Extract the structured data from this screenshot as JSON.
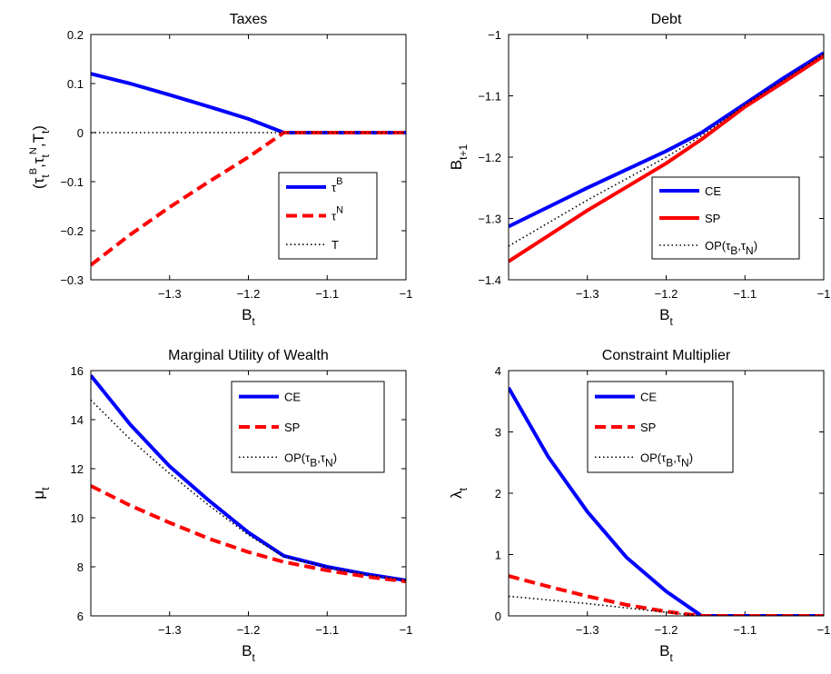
{
  "chart_data": [
    {
      "type": "line",
      "title": "Taxes",
      "xlabel": {
        "main": "B",
        "sub": "t"
      },
      "ylabel": {
        "parts": [
          {
            "t": "(",
            "s": "n"
          },
          {
            "t": "τ",
            "s": "n"
          },
          {
            "t": "t",
            "s": "sub"
          },
          {
            "t": "B",
            "s": "sup"
          },
          {
            "t": ",",
            "s": "n"
          },
          {
            "t": "τ",
            "s": "n"
          },
          {
            "t": "t",
            "s": "sub"
          },
          {
            "t": "N",
            "s": "sup"
          },
          {
            "t": ",T",
            "s": "n"
          },
          {
            "t": "t",
            "s": "sub"
          },
          {
            "t": ")",
            "s": "n"
          }
        ]
      },
      "xlim": [
        -1.4,
        -1.0
      ],
      "ylim": [
        -0.3,
        0.2
      ],
      "xticks": [
        -1.3,
        -1.2,
        -1.1,
        -1
      ],
      "xtick_labels": [
        "−1.3",
        "−1.2",
        "−1.1",
        "−1"
      ],
      "yticks": [
        -0.3,
        -0.2,
        -0.1,
        0,
        0.1,
        0.2
      ],
      "ytick_labels": [
        "−0.3",
        "−0.2",
        "−0.1",
        "0",
        "0.1",
        "0.2"
      ],
      "legend_position": "lower-right",
      "series": [
        {
          "name": "τ^B",
          "legend": {
            "main": "τ",
            "sup": "B"
          },
          "color": "#0000ff",
          "style": "solid",
          "x": [
            -1.4,
            -1.35,
            -1.3,
            -1.25,
            -1.2,
            -1.155,
            -1.1,
            -1.05,
            -1.0
          ],
          "y": [
            0.12,
            0.1,
            0.077,
            0.053,
            0.028,
            0.0,
            0.0,
            0.0,
            0.0
          ]
        },
        {
          "name": "τ^N",
          "legend": {
            "main": "τ",
            "sup": "N"
          },
          "color": "#ff0000",
          "style": "dashed",
          "x": [
            -1.4,
            -1.35,
            -1.3,
            -1.25,
            -1.2,
            -1.155,
            -1.1,
            -1.05,
            -1.0
          ],
          "y": [
            -0.27,
            -0.208,
            -0.152,
            -0.1,
            -0.05,
            0.0,
            0.0,
            0.0,
            0.0
          ]
        },
        {
          "name": "T",
          "legend": {
            "main": "T",
            "sup": ""
          },
          "color": "#000000",
          "style": "dotted",
          "x": [
            -1.4,
            -1.0
          ],
          "y": [
            0.0,
            0.0
          ]
        }
      ]
    },
    {
      "type": "line",
      "title": "Debt",
      "xlabel": {
        "main": "B",
        "sub": "t"
      },
      "ylabel": {
        "parts": [
          {
            "t": "B",
            "s": "n"
          },
          {
            "t": "t+1",
            "s": "sub"
          }
        ]
      },
      "xlim": [
        -1.4,
        -1.0
      ],
      "ylim": [
        -1.4,
        -1.0
      ],
      "xticks": [
        -1.3,
        -1.2,
        -1.1,
        -1
      ],
      "xtick_labels": [
        "−1.3",
        "−1.2",
        "−1.1",
        "−1"
      ],
      "yticks": [
        -1.4,
        -1.3,
        -1.2,
        -1.1,
        -1
      ],
      "ytick_labels": [
        "−1.4",
        "−1.3",
        "−1.2",
        "−1.1",
        "−1"
      ],
      "legend_position": "lower-right",
      "series": [
        {
          "name": "CE",
          "legend": {
            "main": "CE"
          },
          "color": "#0000ff",
          "style": "solid",
          "x": [
            -1.4,
            -1.3,
            -1.2,
            -1.155,
            -1.1,
            -1.05,
            -1.0
          ],
          "y": [
            -1.313,
            -1.25,
            -1.19,
            -1.16,
            -1.113,
            -1.07,
            -1.03
          ]
        },
        {
          "name": "SP",
          "legend": {
            "main": "SP"
          },
          "color": "#ff0000",
          "style": "solid",
          "x": [
            -1.4,
            -1.3,
            -1.2,
            -1.155,
            -1.1,
            -1.05,
            -1.0
          ],
          "y": [
            -1.37,
            -1.287,
            -1.21,
            -1.171,
            -1.118,
            -1.077,
            -1.035
          ]
        },
        {
          "name": "OP(τB,τN)",
          "legend": {
            "main": "OP(τ",
            "sub1": "B",
            "mid": ",τ",
            "sub2": "N",
            "end": ")"
          },
          "color": "#000000",
          "style": "dotted",
          "x": [
            -1.4,
            -1.3,
            -1.2,
            -1.155,
            -1.1,
            -1.05,
            -1.0
          ],
          "y": [
            -1.345,
            -1.27,
            -1.2,
            -1.165,
            -1.115,
            -1.073,
            -1.032
          ]
        }
      ]
    },
    {
      "type": "line",
      "title": "Marginal Utility of Wealth",
      "xlabel": {
        "main": "B",
        "sub": "t"
      },
      "ylabel": {
        "parts": [
          {
            "t": "μ",
            "s": "n"
          },
          {
            "t": "t",
            "s": "sub"
          }
        ]
      },
      "xlim": [
        -1.4,
        -1.0
      ],
      "ylim": [
        6,
        16
      ],
      "xticks": [
        -1.3,
        -1.2,
        -1.1,
        -1
      ],
      "xtick_labels": [
        "−1.3",
        "−1.2",
        "−1.1",
        "−1"
      ],
      "yticks": [
        6,
        8,
        10,
        12,
        14,
        16
      ],
      "ytick_labels": [
        "6",
        "8",
        "10",
        "12",
        "14",
        "16"
      ],
      "legend_position": "top-right",
      "series": [
        {
          "name": "CE",
          "legend": {
            "main": "CE"
          },
          "color": "#0000ff",
          "style": "solid",
          "x": [
            -1.4,
            -1.35,
            -1.3,
            -1.25,
            -1.2,
            -1.155,
            -1.1,
            -1.05,
            -1.0
          ],
          "y": [
            15.8,
            13.8,
            12.1,
            10.7,
            9.4,
            8.45,
            8.0,
            7.7,
            7.45
          ]
        },
        {
          "name": "SP",
          "legend": {
            "main": "SP"
          },
          "color": "#ff0000",
          "style": "dashed",
          "x": [
            -1.4,
            -1.35,
            -1.3,
            -1.25,
            -1.2,
            -1.155,
            -1.1,
            -1.05,
            -1.0
          ],
          "y": [
            11.3,
            10.5,
            9.8,
            9.15,
            8.6,
            8.2,
            7.85,
            7.6,
            7.4
          ]
        },
        {
          "name": "OP(τB,τN)",
          "legend": {
            "main": "OP(τ",
            "sub1": "B",
            "mid": ",τ",
            "sub2": "N",
            "end": ")"
          },
          "color": "#000000",
          "style": "dotted",
          "x": [
            -1.4,
            -1.35,
            -1.3,
            -1.25,
            -1.2,
            -1.155,
            -1.1,
            -1.05,
            -1.0
          ],
          "y": [
            14.8,
            13.2,
            11.8,
            10.5,
            9.3,
            8.42,
            7.98,
            7.68,
            7.45
          ]
        }
      ]
    },
    {
      "type": "line",
      "title": "Constraint Multiplier",
      "xlabel": {
        "main": "B",
        "sub": "t"
      },
      "ylabel": {
        "parts": [
          {
            "t": "λ",
            "s": "n"
          },
          {
            "t": "t",
            "s": "sub"
          }
        ]
      },
      "xlim": [
        -1.4,
        -1.0
      ],
      "ylim": [
        0,
        4
      ],
      "xticks": [
        -1.3,
        -1.2,
        -1.1,
        -1
      ],
      "xtick_labels": [
        "−1.3",
        "−1.2",
        "−1.1",
        "−1"
      ],
      "yticks": [
        0,
        1,
        2,
        3,
        4
      ],
      "ytick_labels": [
        "0",
        "1",
        "2",
        "3",
        "4"
      ],
      "legend_position": "top-center",
      "series": [
        {
          "name": "CE",
          "legend": {
            "main": "CE"
          },
          "color": "#0000ff",
          "style": "solid",
          "x": [
            -1.4,
            -1.35,
            -1.3,
            -1.25,
            -1.2,
            -1.155,
            -1.1,
            -1.05,
            -1.0
          ],
          "y": [
            3.72,
            2.6,
            1.7,
            0.95,
            0.4,
            0.0,
            0.0,
            0.0,
            0.0
          ]
        },
        {
          "name": "SP",
          "legend": {
            "main": "SP"
          },
          "color": "#ff0000",
          "style": "dashed",
          "x": [
            -1.4,
            -1.35,
            -1.3,
            -1.25,
            -1.2,
            -1.155,
            -1.1,
            -1.05,
            -1.0
          ],
          "y": [
            0.65,
            0.48,
            0.32,
            0.18,
            0.07,
            0.0,
            0.0,
            0.0,
            0.0
          ]
        },
        {
          "name": "OP(τB,τN)",
          "legend": {
            "main": "OP(τ",
            "sub1": "B",
            "mid": ",τ",
            "sub2": "N",
            "end": ")"
          },
          "color": "#000000",
          "style": "dotted",
          "x": [
            -1.4,
            -1.3,
            -1.2,
            -1.155,
            -1.1,
            -1.0
          ],
          "y": [
            0.32,
            0.2,
            0.06,
            0.0,
            0.0,
            0.0
          ]
        }
      ]
    }
  ]
}
